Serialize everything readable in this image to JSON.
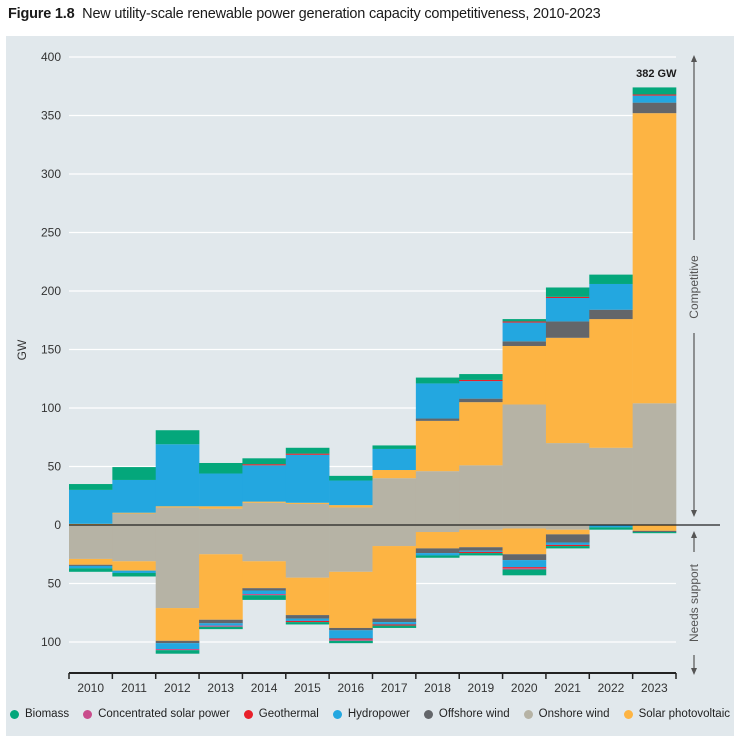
{
  "figure": {
    "label": "Figure 1.8",
    "title": "New utility-scale renewable power generation capacity competitiveness, 2010-2023"
  },
  "chart_data": {
    "type": "bar",
    "stacked": true,
    "diverging": true,
    "title": "New utility-scale renewable power generation capacity competitiveness, 2010-2023",
    "xlabel": "",
    "ylabel": "GW",
    "ylim": [
      -110,
      400
    ],
    "yticks": [
      400,
      350,
      300,
      250,
      200,
      150,
      100,
      50,
      0,
      -50,
      -100
    ],
    "ytick_labels": [
      "400",
      "350",
      "300",
      "250",
      "200",
      "150",
      "100",
      "50",
      "0",
      "50",
      "100"
    ],
    "categories": [
      "2010",
      "2011",
      "2012",
      "2013",
      "2014",
      "2015",
      "2016",
      "2017",
      "2018",
      "2019",
      "2020",
      "2021",
      "2022",
      "2023"
    ],
    "grid": true,
    "annotations": [
      {
        "text": "382 GW",
        "category": "2023"
      },
      {
        "text": "Competitive",
        "side": "right",
        "region": "positive"
      },
      {
        "text": "Needs support",
        "side": "right",
        "region": "negative"
      }
    ],
    "series_order": [
      "Onshore wind",
      "Solar photovoltaic",
      "Offshore wind",
      "Hydropower",
      "Geothermal",
      "Concentrated solar power",
      "Biomass"
    ],
    "competitive": [
      {
        "name": "Onshore wind",
        "color": "#b6b3a5",
        "values": [
          0,
          10,
          15,
          14,
          19,
          18,
          15,
          40,
          46,
          51,
          103,
          70,
          66,
          104
        ]
      },
      {
        "name": "Solar photovoltaic",
        "color": "#fdb443",
        "values": [
          1,
          0.5,
          1,
          2,
          1,
          1,
          2,
          7,
          43,
          54,
          50,
          90,
          110,
          248
        ]
      },
      {
        "name": "Offshore wind",
        "color": "#63666a",
        "values": [
          0,
          0,
          0,
          0,
          0,
          0,
          0,
          0,
          2,
          3,
          4,
          14,
          8,
          9
        ]
      },
      {
        "name": "Hydropower",
        "color": "#23a7e0",
        "values": [
          29,
          28,
          53,
          28,
          31,
          41,
          21,
          18,
          30,
          15,
          16,
          20,
          22,
          6
        ]
      },
      {
        "name": "Geothermal",
        "color": "#e8202a",
        "values": [
          0,
          0,
          0,
          0,
          1,
          1,
          0,
          0,
          0,
          1,
          1,
          1,
          0,
          1
        ]
      },
      {
        "name": "Concentrated solar power",
        "color": "#c94d8c",
        "values": [
          0,
          0,
          0,
          0,
          0,
          0,
          0,
          0,
          0,
          0,
          0,
          0,
          0,
          0
        ]
      },
      {
        "name": "Biomass",
        "color": "#04a77b",
        "values": [
          5,
          11,
          12,
          9,
          5,
          5,
          4,
          3,
          5,
          5,
          2,
          8,
          8,
          6
        ]
      }
    ],
    "needs_support": [
      {
        "name": "Onshore wind",
        "color": "#b6b3a5",
        "values": [
          -29,
          -31,
          -71,
          -25,
          -31,
          -45,
          -40,
          -18,
          -6,
          -4,
          -3,
          -4,
          0,
          0
        ]
      },
      {
        "name": "Solar photovoltaic",
        "color": "#fdb443",
        "values": [
          -5,
          -8,
          -28,
          -56,
          -23,
          -32,
          -48,
          -62,
          -14,
          -15,
          -22,
          -4,
          0,
          -5
        ]
      },
      {
        "name": "Offshore wind",
        "color": "#63666a",
        "values": [
          -1,
          0,
          -2,
          -3,
          -2,
          -3,
          -2,
          -3,
          -4,
          -3,
          -5,
          -7,
          0,
          -1
        ]
      },
      {
        "name": "Hydropower",
        "color": "#23a7e0",
        "values": [
          -2,
          -2,
          -5,
          -2,
          -3,
          -2,
          -7,
          -2,
          -2,
          -1,
          -6,
          -2,
          -2,
          0
        ]
      },
      {
        "name": "Geothermal",
        "color": "#e8202a",
        "values": [
          0,
          0,
          0,
          0,
          0,
          -1,
          -1,
          -1,
          0,
          -1,
          -1,
          -1,
          0,
          0
        ]
      },
      {
        "name": "Concentrated solar power",
        "color": "#c94d8c",
        "values": [
          0,
          0,
          -1,
          -1,
          -1,
          0,
          -1,
          0,
          0,
          0,
          -1,
          0,
          0,
          0
        ]
      },
      {
        "name": "Biomass",
        "color": "#04a77b",
        "values": [
          -3,
          -3,
          -3,
          -2,
          -4,
          -2,
          -2,
          -2,
          -2,
          -2,
          -5,
          -2,
          -2,
          -1
        ]
      }
    ],
    "legend": {
      "placement": "bottom",
      "entries": [
        {
          "label": "Biomass",
          "color": "#04a77b"
        },
        {
          "label": "Concentrated solar power",
          "color": "#c94d8c"
        },
        {
          "label": "Geothermal",
          "color": "#e8202a"
        },
        {
          "label": "Hydropower",
          "color": "#23a7e0"
        },
        {
          "label": "Offshore wind",
          "color": "#63666a"
        },
        {
          "label": "Onshore wind",
          "color": "#b6b3a5"
        },
        {
          "label": "Solar photovoltaic",
          "color": "#fdb443"
        }
      ]
    }
  }
}
